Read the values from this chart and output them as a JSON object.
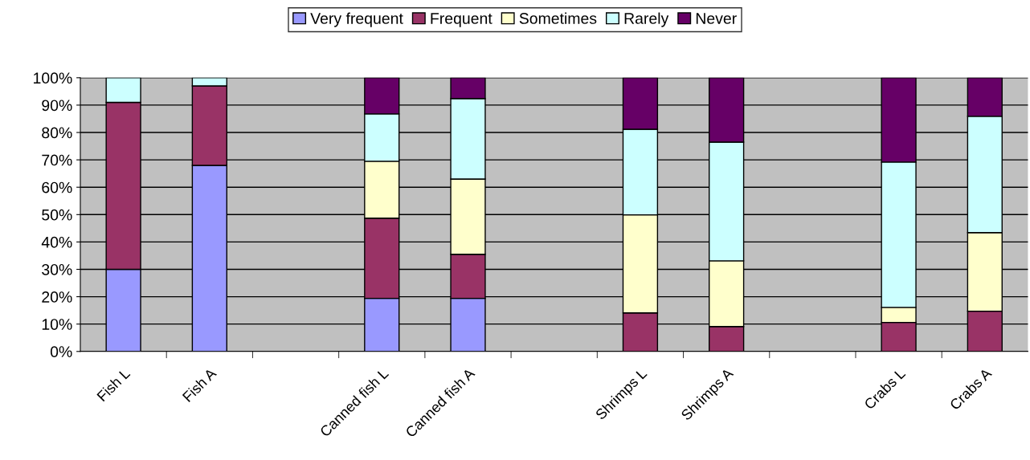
{
  "chart_data": {
    "type": "bar",
    "stacked": true,
    "categories": [
      "Fish L",
      "Fish A",
      null,
      "Canned fish L",
      "Canned fish A",
      null,
      "Shrimps L",
      "Shrimps A",
      null,
      "Crabs L",
      "Crabs A"
    ],
    "series": [
      {
        "name": "Very frequent",
        "color": "#9999ff",
        "values": [
          30,
          68,
          null,
          19.4,
          19.4,
          null,
          0,
          0,
          null,
          0,
          0
        ]
      },
      {
        "name": "Frequent",
        "color": "#993366",
        "values": [
          61,
          29,
          null,
          29.3,
          16.1,
          null,
          14.1,
          9.1,
          null,
          10.6,
          14.7
        ]
      },
      {
        "name": "Sometimes",
        "color": "#ffffcc",
        "values": [
          0,
          0,
          null,
          20.8,
          27.5,
          null,
          35.8,
          24,
          null,
          5.5,
          28.7
        ]
      },
      {
        "name": "Rarely",
        "color": "#ccffff",
        "values": [
          9,
          3,
          null,
          17.3,
          29.4,
          null,
          31.3,
          43.4,
          null,
          53.1,
          42.5
        ]
      },
      {
        "name": "Never",
        "color": "#660066",
        "values": [
          0,
          0,
          null,
          13.2,
          7.6,
          null,
          18.8,
          23.5,
          null,
          30.8,
          14.1
        ]
      }
    ],
    "ylim": [
      0,
      100
    ],
    "yticks": [
      {
        "value": 0,
        "label": "0%"
      },
      {
        "value": 10,
        "label": "10%"
      },
      {
        "value": 20,
        "label": "20%"
      },
      {
        "value": 30,
        "label": "30%"
      },
      {
        "value": 40,
        "label": "40%"
      },
      {
        "value": 50,
        "label": "50%"
      },
      {
        "value": 60,
        "label": "60%"
      },
      {
        "value": 70,
        "label": "70%"
      },
      {
        "value": 80,
        "label": "80%"
      },
      {
        "value": 90,
        "label": "90%"
      },
      {
        "value": 100,
        "label": "100%"
      }
    ],
    "grid": "y",
    "legend": "top"
  }
}
